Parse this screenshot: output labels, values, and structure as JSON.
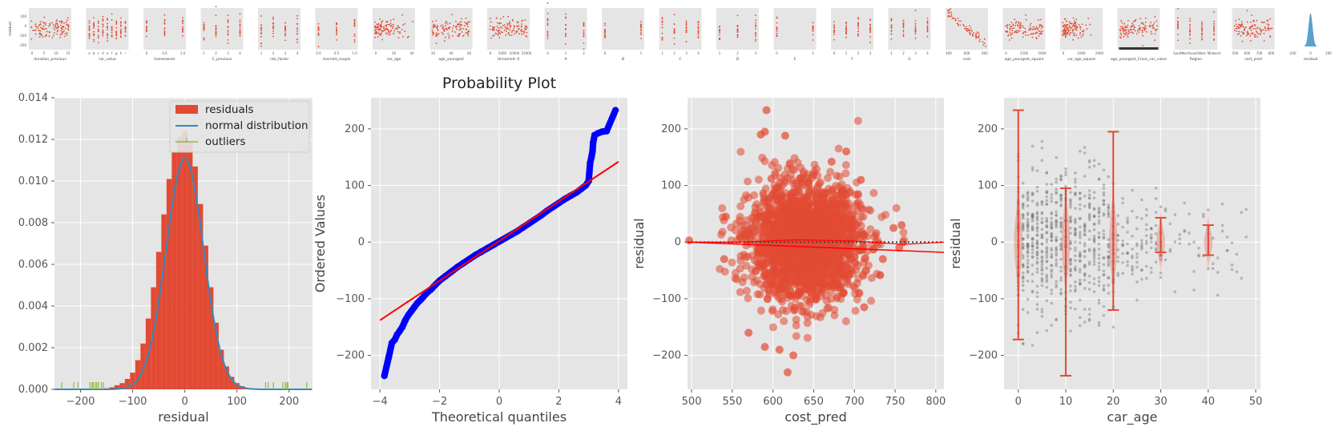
{
  "colors": {
    "panel_bg": "#E5E5E5",
    "grid": "#FFFFFF",
    "red": "#E24A33",
    "blue_line": "#348ABD",
    "qq_blue": "#0000FF",
    "green": "#8EBA42",
    "gray": "#777777"
  },
  "chart_data": [
    {
      "type": "scatter",
      "name": "residual pair-plot strip",
      "ylabel": "residual",
      "panels": [
        {
          "xlabel": "duration_previous",
          "ticks": [
            "0",
            "5",
            "10",
            "15"
          ]
        },
        {
          "xlabel": "car_value",
          "ticks": [
            "a",
            "b",
            "c",
            "d",
            "e",
            "f",
            "g",
            "h",
            "i"
          ]
        },
        {
          "xlabel": "homeowner",
          "ticks": [
            "0",
            "0.5",
            "1.0"
          ]
        },
        {
          "xlabel": "C_previous",
          "ticks": [
            "1",
            "2",
            "3",
            "4"
          ]
        },
        {
          "xlabel": "risk_factor",
          "ticks": [
            "1",
            "2",
            "3",
            "4"
          ]
        },
        {
          "xlabel": "married_couple",
          "ticks": [
            "0.0",
            "0.5",
            "1.0"
          ]
        },
        {
          "xlabel": "car_age",
          "ticks": [
            "0",
            "20",
            "40"
          ]
        },
        {
          "xlabel": "age_youngest",
          "ticks": [
            "20",
            "40",
            "60"
          ]
        },
        {
          "xlabel": "Unnamed: 0",
          "ticks": [
            "0",
            "5000",
            "10000",
            "15000"
          ]
        },
        {
          "xlabel": "A",
          "ticks": [
            "0",
            "1",
            "2"
          ]
        },
        {
          "xlabel": "B",
          "ticks": [
            "0",
            "1"
          ]
        },
        {
          "xlabel": "C",
          "ticks": [
            "1",
            "2",
            "3",
            "4"
          ]
        },
        {
          "xlabel": "D",
          "ticks": [
            "1",
            "2",
            "3"
          ]
        },
        {
          "xlabel": "E",
          "ticks": [
            "0",
            "1"
          ]
        },
        {
          "xlabel": "F",
          "ticks": [
            "0",
            "1",
            "2",
            "3"
          ]
        },
        {
          "xlabel": "G",
          "ticks": [
            "1",
            "2",
            "3",
            "4"
          ]
        },
        {
          "xlabel": "cost",
          "ticks": [
            "400",
            "600",
            "800"
          ]
        },
        {
          "xlabel": "age_youngest_square",
          "ticks": [
            "0",
            "2500",
            "5000"
          ]
        },
        {
          "xlabel": "car_age_square",
          "ticks": [
            "0",
            "1000",
            "2000"
          ]
        },
        {
          "xlabel": "age_youngest_Cross_car_value",
          "ticks": []
        },
        {
          "xlabel": "Region",
          "ticks": [
            "South",
            "Northeast",
            "West",
            "Midwest"
          ]
        },
        {
          "xlabel": "cost_pred",
          "ticks": [
            "500",
            "600",
            "700",
            "800"
          ]
        },
        {
          "xlabel": "residual",
          "ticks": [
            "-200",
            "0",
            "200"
          ]
        }
      ]
    },
    {
      "type": "histogram",
      "xlabel": "residual",
      "xlim": [
        -250,
        245
      ],
      "ylim": [
        0,
        0.014
      ],
      "xticks": [
        -200,
        -100,
        0,
        100,
        200
      ],
      "yticks": [
        0.0,
        0.002,
        0.004,
        0.006,
        0.008,
        0.01,
        0.012,
        0.014
      ],
      "legend": {
        "position": "top-right",
        "entries": [
          "residuals",
          "normal distribution",
          "outliers"
        ]
      },
      "bin_width": 10,
      "bins": [
        {
          "x": -150,
          "y": 5e-05
        },
        {
          "x": -140,
          "y": 0.0001
        },
        {
          "x": -130,
          "y": 0.0002
        },
        {
          "x": -120,
          "y": 0.0003
        },
        {
          "x": -110,
          "y": 0.0005
        },
        {
          "x": -100,
          "y": 0.0008
        },
        {
          "x": -90,
          "y": 0.0014
        },
        {
          "x": -80,
          "y": 0.0022
        },
        {
          "x": -70,
          "y": 0.0034
        },
        {
          "x": -60,
          "y": 0.0049
        },
        {
          "x": -50,
          "y": 0.0066
        },
        {
          "x": -40,
          "y": 0.0084
        },
        {
          "x": -30,
          "y": 0.0101
        },
        {
          "x": -20,
          "y": 0.0114
        },
        {
          "x": -10,
          "y": 0.0121
        },
        {
          "x": 0,
          "y": 0.0124
        },
        {
          "x": 10,
          "y": 0.0119
        },
        {
          "x": 20,
          "y": 0.0107
        },
        {
          "x": 30,
          "y": 0.0089
        },
        {
          "x": 40,
          "y": 0.0069
        },
        {
          "x": 50,
          "y": 0.0049
        },
        {
          "x": 60,
          "y": 0.0032
        },
        {
          "x": 70,
          "y": 0.0019
        },
        {
          "x": 80,
          "y": 0.0011
        },
        {
          "x": 90,
          "y": 0.0006
        },
        {
          "x": 100,
          "y": 0.0003
        },
        {
          "x": 110,
          "y": 0.00015
        },
        {
          "x": 120,
          "y": 5e-05
        }
      ],
      "normal_fit": {
        "mean": 0,
        "std": 36
      },
      "outlier_x": [
        -236,
        -213,
        -205,
        -182,
        -178,
        -176,
        -172,
        -169,
        -166,
        -160,
        -156,
        155,
        160,
        170,
        188,
        193,
        196,
        198,
        234
      ]
    },
    {
      "type": "scatter",
      "title": "Probability Plot",
      "xlabel": "Theoretical quantiles",
      "ylabel": "Ordered Values",
      "xlim": [
        -4.3,
        4.3
      ],
      "ylim": [
        -260,
        255
      ],
      "xticks": [
        -4,
        -2,
        0,
        2,
        4
      ],
      "yticks": [
        -200,
        -100,
        0,
        100,
        200
      ],
      "fit_line": {
        "slope": 35,
        "intercept": 2
      },
      "points": [
        [
          -3.85,
          -236
        ],
        [
          -3.7,
          -202
        ],
        [
          -3.6,
          -178
        ],
        [
          -3.5,
          -172
        ],
        [
          -3.42,
          -163
        ],
        [
          -3.35,
          -158
        ],
        [
          -3.25,
          -150
        ],
        [
          -3.15,
          -138
        ],
        [
          -3.05,
          -129
        ],
        [
          -2.95,
          -122
        ],
        [
          -2.85,
          -115
        ],
        [
          -2.75,
          -108
        ],
        [
          -2.6,
          -100
        ],
        [
          -2.45,
          -91
        ],
        [
          -2.3,
          -84
        ],
        [
          -2.15,
          -76
        ],
        [
          -2.0,
          -68
        ],
        [
          -1.8,
          -60
        ],
        [
          -1.6,
          -52
        ],
        [
          -1.4,
          -44
        ],
        [
          -1.2,
          -37
        ],
        [
          -1.0,
          -30
        ],
        [
          -0.8,
          -23
        ],
        [
          -0.6,
          -17
        ],
        [
          -0.4,
          -11
        ],
        [
          -0.2,
          -5
        ],
        [
          0.0,
          1
        ],
        [
          0.2,
          7
        ],
        [
          0.4,
          13
        ],
        [
          0.6,
          19
        ],
        [
          0.8,
          26
        ],
        [
          1.0,
          33
        ],
        [
          1.2,
          40
        ],
        [
          1.4,
          47
        ],
        [
          1.6,
          55
        ],
        [
          1.8,
          62
        ],
        [
          2.0,
          69
        ],
        [
          2.2,
          76
        ],
        [
          2.4,
          82
        ],
        [
          2.6,
          88
        ],
        [
          2.75,
          94
        ],
        [
          2.9,
          100
        ],
        [
          3.0,
          108
        ],
        [
          3.05,
          140
        ],
        [
          3.1,
          152
        ],
        [
          3.13,
          160
        ],
        [
          3.15,
          176
        ],
        [
          3.2,
          189
        ],
        [
          3.3,
          192
        ],
        [
          3.45,
          195
        ],
        [
          3.6,
          196
        ],
        [
          3.9,
          233
        ]
      ]
    },
    {
      "type": "scatter",
      "xlabel": "cost_pred",
      "ylabel": "residual",
      "xlim": [
        495,
        810
      ],
      "ylim": [
        -260,
        255
      ],
      "xticks": [
        500,
        550,
        600,
        650,
        700,
        750,
        800
      ],
      "yticks": [
        -200,
        -100,
        0,
        100,
        200
      ],
      "cloud": {
        "center": [
          640,
          0
        ],
        "x_spread": 45,
        "y_spread": 50
      },
      "linear_fit": [
        [
          495,
          0
        ],
        [
          810,
          -18
        ]
      ],
      "lowess": [
        [
          495,
          0
        ],
        [
          560,
          0
        ],
        [
          630,
          4
        ],
        [
          700,
          2
        ],
        [
          760,
          -4
        ],
        [
          810,
          0
        ]
      ],
      "outliers": [
        [
          592,
          233
        ],
        [
          585,
          190
        ],
        [
          590,
          195
        ],
        [
          615,
          188
        ],
        [
          672,
          142
        ],
        [
          598,
          112
        ],
        [
          708,
          110
        ],
        [
          690,
          160
        ],
        [
          590,
          -185
        ],
        [
          608,
          -190
        ],
        [
          625,
          -200
        ],
        [
          618,
          -230
        ],
        [
          570,
          -160
        ],
        [
          712,
          -115
        ],
        [
          735,
          -30
        ],
        [
          748,
          25
        ],
        [
          760,
          0
        ],
        [
          755,
          -10
        ],
        [
          758,
          30
        ],
        [
          542,
          45
        ],
        [
          540,
          -30
        ],
        [
          497,
          3
        ]
      ]
    },
    {
      "type": "scatter",
      "xlabel": "car_age",
      "ylabel": "residual",
      "xlim": [
        -3,
        51
      ],
      "ylim": [
        -260,
        255
      ],
      "xticks": [
        0,
        10,
        20,
        30,
        40,
        50
      ],
      "yticks": [
        -200,
        -100,
        0,
        100,
        200
      ],
      "error_bars": [
        {
          "x": 0,
          "low": -172,
          "high": 233
        },
        {
          "x": 10,
          "low": -236,
          "high": 95
        },
        {
          "x": 20,
          "low": -120,
          "high": 195
        },
        {
          "x": 30,
          "low": -18,
          "high": 43
        },
        {
          "x": 40,
          "low": -23,
          "high": 30
        }
      ],
      "violins": [
        {
          "x": 0,
          "spread": 45
        },
        {
          "x": 10,
          "spread": 45
        },
        {
          "x": 20,
          "spread": 45
        },
        {
          "x": 30,
          "spread": 22
        },
        {
          "x": 40,
          "spread": 20
        }
      ]
    }
  ]
}
